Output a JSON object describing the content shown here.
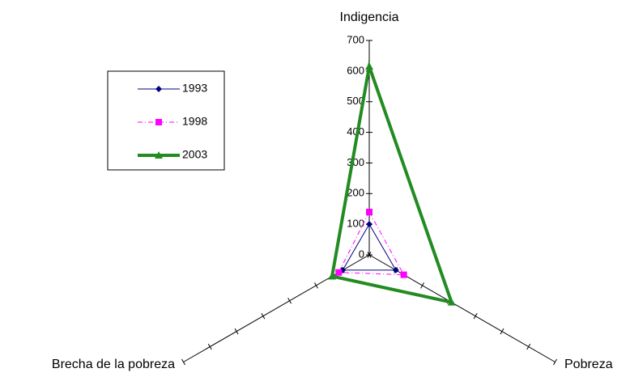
{
  "chart_data": {
    "type": "radar",
    "categories": [
      "Indigencia",
      "Pobreza",
      "Brecha de la pobreza"
    ],
    "rlim": [
      0,
      700
    ],
    "rticks": [
      0,
      100,
      200,
      300,
      400,
      500,
      600,
      700
    ],
    "legend": "left",
    "series": [
      {
        "name": "1993",
        "color": "#000080",
        "marker": "diamond",
        "dash": "solid",
        "width": 1,
        "values": [
          100,
          100,
          100
        ]
      },
      {
        "name": "1998",
        "color": "#ff00ff",
        "marker": "square",
        "dash": "dashdot",
        "width": 1,
        "values": [
          140,
          130,
          115
        ]
      },
      {
        "name": "2003",
        "color": "#228b22",
        "marker": "triangle",
        "dash": "solid",
        "width": 4,
        "values": [
          615,
          310,
          140
        ]
      }
    ]
  }
}
